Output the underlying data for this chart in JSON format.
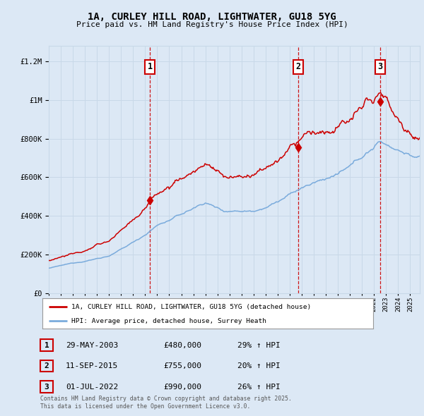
{
  "title": "1A, CURLEY HILL ROAD, LIGHTWATER, GU18 5YG",
  "subtitle": "Price paid vs. HM Land Registry's House Price Index (HPI)",
  "ytick_values": [
    0,
    200000,
    400000,
    600000,
    800000,
    1000000,
    1200000
  ],
  "ylim": [
    0,
    1280000
  ],
  "xlim_start": 1995.0,
  "xlim_end": 2025.8,
  "sale_dates": [
    2003.41,
    2015.7,
    2022.5
  ],
  "sale_prices": [
    480000,
    755000,
    990000
  ],
  "sale_labels": [
    "1",
    "2",
    "3"
  ],
  "sale_date_labels": [
    "29-MAY-2003",
    "11-SEP-2015",
    "01-JUL-2022"
  ],
  "sale_price_labels": [
    "£480,000",
    "£755,000",
    "£990,000"
  ],
  "sale_hpi_labels": [
    "29% ↑ HPI",
    "20% ↑ HPI",
    "26% ↑ HPI"
  ],
  "legend_line1": "1A, CURLEY HILL ROAD, LIGHTWATER, GU18 5YG (detached house)",
  "legend_line2": "HPI: Average price, detached house, Surrey Heath",
  "footer": "Contains HM Land Registry data © Crown copyright and database right 2025.\nThis data is licensed under the Open Government Licence v3.0.",
  "line_color_red": "#cc0000",
  "line_color_blue": "#7aabdc",
  "grid_color": "#c8d8e8",
  "bg_color": "#dce8f5",
  "vline_color": "#cc0000",
  "years_xticks": [
    1995,
    1996,
    1997,
    1998,
    1999,
    2000,
    2001,
    2002,
    2003,
    2004,
    2005,
    2006,
    2007,
    2008,
    2009,
    2010,
    2011,
    2012,
    2013,
    2014,
    2015,
    2016,
    2017,
    2018,
    2019,
    2020,
    2021,
    2022,
    2023,
    2024,
    2025
  ]
}
